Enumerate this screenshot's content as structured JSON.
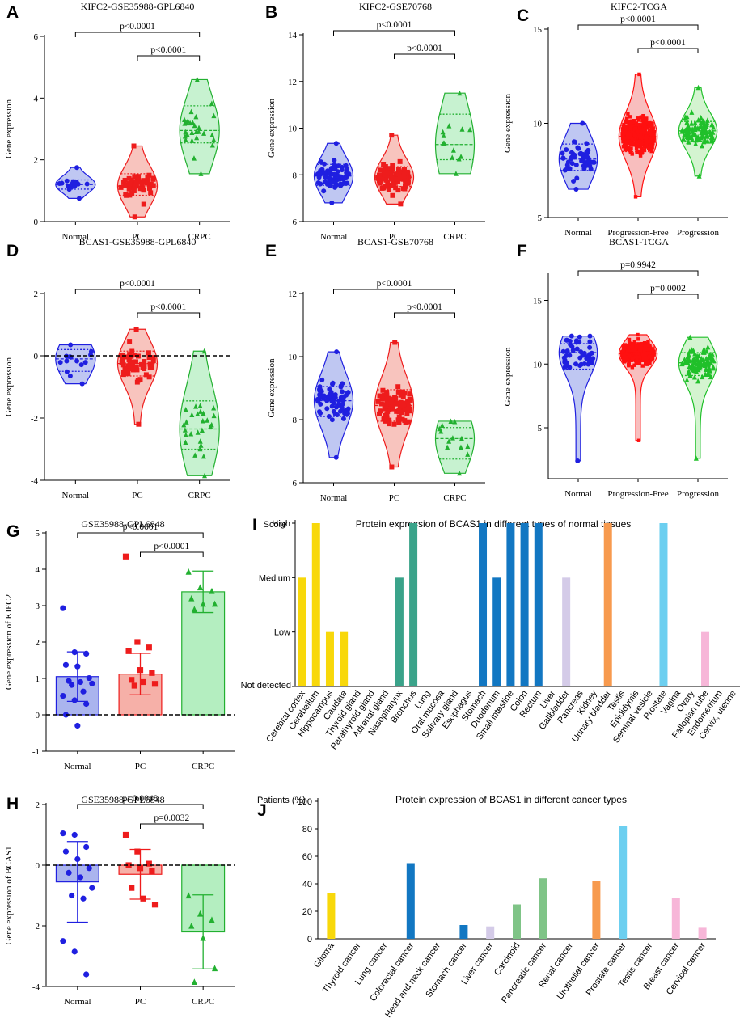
{
  "colors": {
    "normal": "#1f1fe0",
    "normal_fill": "#aab4ee",
    "pc": "#ee1c1c",
    "pc_fill": "#f6b0a8",
    "crpc": "#22b030",
    "crpc_fill": "#b4eec0",
    "prog_free": "#ff1010",
    "prog_free_fill": "#f6a8a8",
    "prog": "#20c02a",
    "prog_fill": "#c6f0c0"
  },
  "chart_data": [
    {
      "id": "A",
      "label": "A",
      "type": "violin",
      "title": "KIFC2-GSE35988-GPL6840",
      "ylabel": "Gene expression",
      "ylim": [
        0,
        6
      ],
      "yticks": [
        "0",
        "2",
        "4",
        "6"
      ],
      "ytick_values": [
        0,
        2,
        4,
        6
      ],
      "categories": [
        "Normal",
        "PC",
        "CRPC"
      ],
      "zero_line": false,
      "groups": [
        {
          "name": "Normal",
          "min": 0.75,
          "max": 1.75,
          "q1": 1.05,
          "median": 1.2,
          "q3": 1.35,
          "n": 14,
          "marker": "circle",
          "color": "normal"
        },
        {
          "name": "PC",
          "min": 0.15,
          "max": 2.45,
          "q1": 0.85,
          "median": 1.15,
          "q3": 1.55,
          "n": 48,
          "marker": "square",
          "color": "pc"
        },
        {
          "name": "CRPC",
          "min": 1.55,
          "max": 4.6,
          "q1": 2.55,
          "median": 2.95,
          "q3": 3.75,
          "n": 28,
          "marker": "triangle",
          "color": "crpc"
        }
      ],
      "comparisons": [
        {
          "label": "p<0.0001",
          "from": 0,
          "to": 2,
          "level": 2
        },
        {
          "label": "p<0.0001",
          "from": 1,
          "to": 2,
          "level": 1
        }
      ]
    },
    {
      "id": "B",
      "label": "B",
      "type": "violin",
      "title": "KIFC2-GSE70768",
      "ylabel": "Gene expression",
      "ylim": [
        6,
        14
      ],
      "yticks": [
        "6",
        "8",
        "10",
        "12",
        "14"
      ],
      "ytick_values": [
        6,
        8,
        10,
        12,
        14
      ],
      "categories": [
        "Normal",
        "PC",
        "CRPC"
      ],
      "zero_line": false,
      "groups": [
        {
          "name": "Normal",
          "min": 6.8,
          "max": 9.35,
          "q1": 7.55,
          "median": 7.95,
          "q3": 8.45,
          "n": 73,
          "marker": "circle",
          "color": "normal"
        },
        {
          "name": "PC",
          "min": 6.75,
          "max": 9.7,
          "q1": 7.5,
          "median": 7.9,
          "q3": 8.35,
          "n": 94,
          "marker": "square",
          "color": "pc"
        },
        {
          "name": "CRPC",
          "min": 8.05,
          "max": 11.5,
          "q1": 8.65,
          "median": 9.3,
          "q3": 10.6,
          "n": 13,
          "marker": "triangle",
          "color": "crpc"
        }
      ],
      "comparisons": [
        {
          "label": "p<0.0001",
          "from": 0,
          "to": 2,
          "level": 2
        },
        {
          "label": "p<0.0001",
          "from": 1,
          "to": 2,
          "level": 1
        }
      ]
    },
    {
      "id": "C",
      "label": "C",
      "type": "violin",
      "title": "KIFC2-TCGA",
      "ylabel": "Gene expression",
      "ylim": [
        5,
        15
      ],
      "yticks": [
        "5",
        "10",
        "15"
      ],
      "ytick_values": [
        5,
        10,
        15
      ],
      "categories": [
        "Normal",
        "Progression-Free",
        "Progression"
      ],
      "zero_line": false,
      "groups": [
        {
          "name": "Normal",
          "min": 6.5,
          "max": 10.0,
          "q1": 7.5,
          "median": 8.1,
          "q3": 8.9,
          "n": 52,
          "marker": "circle",
          "color": "normal"
        },
        {
          "name": "Progression-Free",
          "min": 6.1,
          "max": 12.6,
          "q1": 8.5,
          "median": 9.3,
          "q3": 9.9,
          "n": 400,
          "marker": "square",
          "color": "prog_free"
        },
        {
          "name": "Progression",
          "min": 7.2,
          "max": 11.9,
          "q1": 9.05,
          "median": 9.6,
          "q3": 10.1,
          "n": 95,
          "marker": "triangle",
          "color": "prog"
        }
      ],
      "comparisons": [
        {
          "label": "p<0.0001",
          "from": 0,
          "to": 2,
          "level": 2
        },
        {
          "label": "p<0.0001",
          "from": 1,
          "to": 2,
          "level": 1
        }
      ]
    },
    {
      "id": "D",
      "label": "D",
      "type": "violin",
      "title": "BCAS1-GSE35988-GPL6840",
      "ylabel": "Gene expression",
      "ylim": [
        -4,
        2
      ],
      "yticks": [
        "-4",
        "-2",
        "0",
        "2"
      ],
      "ytick_values": [
        -4,
        -2,
        0,
        2
      ],
      "categories": [
        "Normal",
        "PC",
        "CRPC"
      ],
      "zero_line": true,
      "groups": [
        {
          "name": "Normal",
          "min": -0.9,
          "max": 0.35,
          "q1": -0.5,
          "median": -0.1,
          "q3": 0.2,
          "n": 14,
          "marker": "circle",
          "color": "normal"
        },
        {
          "name": "PC",
          "min": -2.2,
          "max": 0.85,
          "q1": -0.65,
          "median": -0.25,
          "q3": 0.15,
          "n": 54,
          "marker": "square",
          "color": "pc"
        },
        {
          "name": "CRPC",
          "min": -3.85,
          "max": 0.15,
          "q1": -3.0,
          "median": -2.35,
          "q3": -1.45,
          "n": 28,
          "marker": "triangle",
          "color": "crpc"
        }
      ],
      "comparisons": [
        {
          "label": "p<0.0001",
          "from": 0,
          "to": 2,
          "level": 2
        },
        {
          "label": "p<0.0001",
          "from": 1,
          "to": 2,
          "level": 1
        }
      ]
    },
    {
      "id": "E",
      "label": "E",
      "type": "violin",
      "title": "BCAS1-GSE70768",
      "ylabel": "Gene expression",
      "ylim": [
        6,
        12
      ],
      "yticks": [
        "6",
        "8",
        "10",
        "12"
      ],
      "ytick_values": [
        6,
        8,
        10,
        12
      ],
      "categories": [
        "Normal",
        "PC",
        "CRPC"
      ],
      "zero_line": false,
      "groups": [
        {
          "name": "Normal",
          "min": 6.8,
          "max": 10.15,
          "q1": 8.1,
          "median": 8.6,
          "q3": 9.05,
          "n": 73,
          "marker": "circle",
          "color": "normal"
        },
        {
          "name": "PC",
          "min": 6.5,
          "max": 10.45,
          "q1": 7.95,
          "median": 8.45,
          "q3": 8.95,
          "n": 94,
          "marker": "square",
          "color": "pc"
        },
        {
          "name": "CRPC",
          "min": 6.3,
          "max": 7.95,
          "q1": 6.75,
          "median": 7.4,
          "q3": 7.75,
          "n": 13,
          "marker": "triangle",
          "color": "crpc"
        }
      ],
      "comparisons": [
        {
          "label": "p<0.0001",
          "from": 0,
          "to": 2,
          "level": 2
        },
        {
          "label": "p<0.0001",
          "from": 1,
          "to": 2,
          "level": 1
        }
      ]
    },
    {
      "id": "F",
      "label": "F",
      "type": "violin",
      "title": "BCAS1-TCGA",
      "ylabel": "Gene expression",
      "ylim": [
        1,
        17
      ],
      "yticks": [
        "5",
        "10",
        "15"
      ],
      "ytick_values": [
        5,
        10,
        15
      ],
      "categories": [
        "Normal",
        "Progression-Free",
        "Progression"
      ],
      "zero_line": false,
      "groups": [
        {
          "name": "Normal",
          "min": 2.4,
          "max": 12.2,
          "q1": 9.6,
          "median": 10.9,
          "q3": 11.6,
          "n": 52,
          "marker": "circle",
          "color": "normal"
        },
        {
          "name": "Progression-Free",
          "min": 4.0,
          "max": 12.3,
          "q1": 10.2,
          "median": 10.8,
          "q3": 11.4,
          "n": 400,
          "marker": "square",
          "color": "prog_free"
        },
        {
          "name": "Progression",
          "min": 2.6,
          "max": 12.1,
          "q1": 9.1,
          "median": 10.1,
          "q3": 10.9,
          "n": 95,
          "marker": "triangle",
          "color": "prog"
        }
      ],
      "comparisons": [
        {
          "label": "p=0.9942",
          "from": 0,
          "to": 2,
          "level": 2
        },
        {
          "label": "p=0.0002",
          "from": 1,
          "to": 2,
          "level": 1
        }
      ]
    },
    {
      "id": "G",
      "label": "G",
      "type": "bar",
      "title": "GSE35988-GPL6848",
      "ylabel": "Gene expression of KIFC2",
      "ylim": [
        -1,
        5
      ],
      "yticks": [
        "-1",
        "0",
        "1",
        "2",
        "3",
        "4",
        "5"
      ],
      "ytick_values": [
        -1,
        0,
        1,
        2,
        3,
        4,
        5
      ],
      "categories": [
        "Normal",
        "PC",
        "CRPC"
      ],
      "zero_line": true,
      "values": [
        1.05,
        1.12,
        3.38
      ],
      "sd": [
        0.68,
        0.57,
        0.57
      ],
      "points": [
        [
          2.93,
          1.72,
          1.68,
          1.37,
          1.33,
          1.01,
          0.93,
          0.9,
          0.86,
          0.82,
          0.64,
          0.52,
          0.4,
          0.3,
          0.0,
          -0.3
        ],
        [
          4.35,
          2.0,
          1.85,
          1.75,
          1.23,
          1.15,
          0.96,
          0.9,
          0.85,
          0.8
        ],
        [
          3.93,
          3.5,
          3.4,
          3.2,
          3.05,
          3.05,
          2.9
        ]
      ],
      "comparisons": [
        {
          "label": "p<0.0001",
          "from": 0,
          "to": 2,
          "level": 2
        },
        {
          "label": "p<0.0001",
          "from": 1,
          "to": 2,
          "level": 1
        }
      ]
    },
    {
      "id": "H",
      "label": "H",
      "type": "bar",
      "title": "GSE35988-GPL6848",
      "ylabel": "Gene expression of BCAS1",
      "ylim": [
        -4,
        2
      ],
      "yticks": [
        "-4",
        "-2",
        "0",
        "2"
      ],
      "ytick_values": [
        -4,
        -2,
        0,
        2
      ],
      "categories": [
        "Normal",
        "PC",
        "CRPC"
      ],
      "zero_line": true,
      "values": [
        -0.55,
        -0.3,
        -2.2
      ],
      "sd": [
        1.33,
        0.82,
        1.22
      ],
      "points": [
        [
          1.05,
          1.0,
          0.6,
          0.45,
          0.2,
          -0.1,
          -0.25,
          -0.4,
          -0.75,
          -1.0,
          -1.1,
          -2.5,
          -2.85,
          -3.6
        ],
        [
          1.0,
          0.45,
          0.05,
          0.0,
          -0.1,
          -0.2,
          -0.75,
          -1.1,
          -1.3
        ],
        [
          -1.0,
          -1.6,
          -1.8,
          -2.0,
          -2.4,
          -3.4,
          -3.85
        ]
      ],
      "comparisons": [
        {
          "label": "p=0.0048",
          "from": 0,
          "to": 2,
          "level": 2
        },
        {
          "label": "p=0.0032",
          "from": 1,
          "to": 2,
          "level": 1
        }
      ]
    },
    {
      "id": "I",
      "label": "I",
      "type": "bar",
      "title": "Protein expression of BCAS1 in different types of normal tissues",
      "y_axis_title": "Score",
      "ylevels": [
        "Not detected",
        "Low",
        "Medium",
        "High"
      ],
      "ylim": [
        0,
        3
      ],
      "categories": [
        "Cerebral cortex",
        "Cerebellum",
        "Hippocampus",
        "Caudate",
        "Thyroid gland",
        "Parathyroid gland",
        "Adrenal gland",
        "Nasopharynx",
        "Bronchus",
        "Lung",
        "Oral mucosa",
        "Salivary gland",
        "Esophagus",
        "Stomach",
        "Duodenum",
        "Small intestine",
        "Colon",
        "Rectum",
        "Liver",
        "Gallbladder",
        "Pancreas",
        "Kidney",
        "Urinary bladder",
        "Testis",
        "Epididymis",
        "Seminal vesicle",
        "Prostate",
        "Vagina",
        "Ovary",
        "Fallopian tube",
        "Endometrium",
        "Cervix, uterine"
      ],
      "values": [
        2,
        3,
        1,
        1,
        0,
        0,
        0,
        2,
        3,
        0,
        0,
        0,
        0,
        3,
        2,
        3,
        3,
        3,
        0,
        2,
        0,
        0,
        3,
        0,
        0,
        0,
        3,
        0,
        0,
        1,
        0,
        0
      ],
      "bar_colors": [
        "#f8d80a",
        "#f8d80a",
        "#f8d80a",
        "#f8d80a",
        "#f8d80a",
        "#f8d80a",
        "#f8d80a",
        "#3aa38a",
        "#3aa38a",
        "#3aa38a",
        "#3aa38a",
        "#3aa38a",
        "#3aa38a",
        "#1277c2",
        "#1277c2",
        "#1277c2",
        "#1277c2",
        "#1277c2",
        "#d4cbe8",
        "#d4cbe8",
        "#d4cbe8",
        "#d4cbe8",
        "#f79a4e",
        "#6ccff0",
        "#6ccff0",
        "#6ccff0",
        "#6ccff0",
        "#f7b6d8",
        "#f7b6d8",
        "#f7b6d8",
        "#f7b6d8",
        "#f7b6d8"
      ]
    },
    {
      "id": "J",
      "label": "J",
      "type": "bar",
      "title": "Protein expression of BCAS1 in different cancer types",
      "y_axis_title": "Patients (%)",
      "ylim": [
        0,
        100
      ],
      "yticks": [
        "0",
        "20",
        "40",
        "60",
        "80",
        "100"
      ],
      "ytick_values": [
        0,
        20,
        40,
        60,
        80,
        100
      ],
      "categories": [
        "Glioma",
        "Thyroid cancer",
        "Lung cancer",
        "Colorectal cancer",
        "Head and neck cancer",
        "Stomach cancer",
        "Liver cancer",
        "Carcinoid",
        "Pancreatic cancer",
        "Renal cancer",
        "Urothelial cancer",
        "Prostate cancer",
        "Testis cancer",
        "Breast cancer",
        "Cervical cancer"
      ],
      "values": [
        33,
        0,
        0,
        55,
        0,
        10,
        9,
        25,
        44,
        0,
        42,
        82,
        0,
        30,
        8
      ],
      "bar_colors": [
        "#f8d80a",
        "#3aa38a",
        "#3aa38a",
        "#1277c2",
        "#3aa38a",
        "#1277c2",
        "#d4cbe8",
        "#7fc487",
        "#7fc487",
        "#f79a4e",
        "#f79a4e",
        "#6ccff0",
        "#6ccff0",
        "#f7b6d8",
        "#f7b6d8"
      ]
    }
  ]
}
